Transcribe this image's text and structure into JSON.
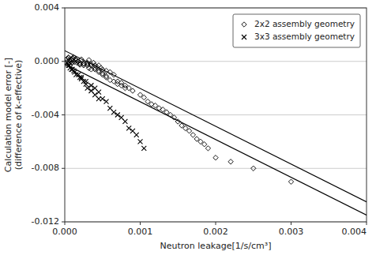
{
  "chart_data": {
    "type": "scatter",
    "xlabel": "Neutron leakage[1/s/cm³]",
    "ylabel": "Calculation model error [-]\n(difference of k-effective)",
    "xlim": [
      0,
      0.004
    ],
    "ylim": [
      -0.012,
      0.004
    ],
    "xticks": [
      {
        "value": 0,
        "label": "0.000"
      },
      0.001,
      0.002,
      0.003,
      0.004
    ],
    "yticks": [
      -0.012,
      -0.008,
      -0.004,
      {
        "value": 0,
        "label": "0.000"
      },
      0.004
    ],
    "grid": "y",
    "legend": "upper right",
    "series": [
      {
        "name": "2x2 assembly geometry",
        "type": "scatter",
        "marker": "diamond",
        "color": "black",
        "x": [
          3e-05,
          5e-05,
          6e-05,
          8e-05,
          0.0001,
          0.0001,
          0.00012,
          0.00015,
          0.00018,
          0.0002,
          0.00022,
          0.00025,
          0.0003,
          0.00032,
          0.00035,
          0.00038,
          0.0004,
          0.00042,
          0.00045,
          0.00048,
          0.0005,
          0.00055,
          0.0006,
          0.00065,
          7e-05,
          9e-05,
          0.00011,
          0.00014,
          0.00016,
          0.0002,
          0.00025,
          0.0003,
          0.00032,
          0.00035,
          0.0004,
          0.00045,
          0.0005,
          0.00055,
          0.0006,
          0.00065,
          0.0007,
          0.00075,
          0.0008,
          5e-05,
          8e-05,
          0.0001,
          0.00013,
          0.00017,
          0.0002,
          0.00025,
          0.0003,
          0.00035,
          0.0004,
          0.00045,
          0.0005,
          0.00055,
          0.0007,
          0.00075,
          0.0008,
          0.00085,
          0.0009,
          0.001,
          0.00105,
          0.0011,
          0.00115,
          0.0012,
          0.00125,
          0.0013,
          0.00135,
          0.0014,
          0.00145,
          0.0015,
          0.00155,
          0.0016,
          0.00165,
          0.0017,
          0.00175,
          0.0018,
          0.00185,
          0.0019,
          0.002,
          0.0022,
          0.0025,
          0.003
        ],
        "values": [
          0.0002,
          0.0003,
          0.0001,
          0.00015,
          0.00025,
          -0.0001,
          0.0003,
          0.0001,
          0.0,
          -0.0001,
          0.00015,
          -0.0002,
          -0.0001,
          0.0001,
          -0.0002,
          -0.0001,
          -0.0003,
          -0.0004,
          -0.0003,
          -0.0005,
          -0.0006,
          -0.0007,
          -0.0008,
          -0.001,
          5e-05,
          -0.0001,
          0.0002,
          0.00015,
          -0.0001,
          -0.0002,
          -0.0003,
          -0.0003,
          -0.0005,
          -0.0006,
          -0.0006,
          -0.0008,
          -0.001,
          -0.0012,
          -0.0014,
          -0.0015,
          -0.0017,
          -0.0018,
          -0.002,
          0.00025,
          0.0,
          0.0001,
          -5e-05,
          0.0,
          -0.00025,
          -0.00015,
          -0.0002,
          -0.0003,
          -0.0005,
          -0.0007,
          -0.0009,
          -0.0011,
          -0.0015,
          -0.0016,
          -0.0018,
          -0.002,
          -0.0022,
          -0.0025,
          -0.0027,
          -0.003,
          -0.0032,
          -0.0033,
          -0.0035,
          -0.0036,
          -0.0038,
          -0.004,
          -0.0042,
          -0.0045,
          -0.0048,
          -0.005,
          -0.0052,
          -0.0055,
          -0.0058,
          -0.006,
          -0.0062,
          -0.0065,
          -0.0072,
          -0.0075,
          -0.008,
          -0.009
        ]
      },
      {
        "name": "3x3 assembly geometry",
        "type": "scatter",
        "marker": "x",
        "color": "black",
        "x": [
          3e-05,
          5e-05,
          7e-05,
          0.0001,
          0.00012,
          0.00015,
          0.0002,
          0.00022,
          0.00025,
          0.00028,
          0.0003,
          0.00035,
          0.0004,
          0.00045,
          4e-05,
          6e-05,
          9e-05,
          0.00013,
          0.00018,
          0.00022,
          0.00028,
          0.00035,
          0.0004,
          0.00045,
          0.0005,
          0.00055,
          0.0006,
          0.00065,
          0.0007,
          0.00075,
          0.0008,
          0.00085,
          0.0009,
          0.00095,
          0.001,
          0.00105
        ],
        "values": [
          -0.0001,
          -0.0003,
          -0.0005,
          -0.0006,
          -0.0007,
          -0.001,
          -0.0012,
          -0.0013,
          -0.0015,
          -0.0017,
          -0.002,
          -0.0022,
          -0.0025,
          -0.0028,
          -0.0002,
          -0.0003,
          -0.0006,
          -0.0008,
          -0.001,
          -0.0012,
          -0.0015,
          -0.0018,
          -0.002,
          -0.0023,
          -0.0028,
          -0.003,
          -0.0035,
          -0.0038,
          -0.004,
          -0.0042,
          -0.0045,
          -0.005,
          -0.0052,
          -0.0055,
          -0.006,
          -0.0065
        ]
      },
      {
        "type": "line",
        "line_style": "solid",
        "color": "black",
        "x": [
          0.0,
          0.004
        ],
        "values": [
          0.0008,
          -0.0105
        ]
      },
      {
        "type": "line",
        "line_style": "solid",
        "color": "black",
        "x": [
          0.0,
          0.004
        ],
        "values": [
          -0.0002,
          -0.0115
        ]
      }
    ]
  }
}
